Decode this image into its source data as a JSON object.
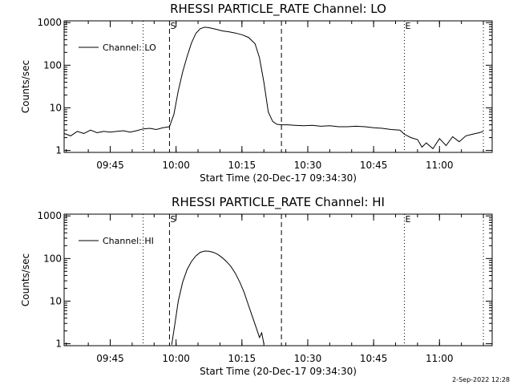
{
  "page": {
    "timestamp": "2-Sep-2022 12:28"
  },
  "chart_data": [
    {
      "type": "line",
      "title": "RHESSI PARTICLE_RATE Channel: LO",
      "xlabel": "Start Time (20-Dec-17 09:34:30)",
      "ylabel": "Counts/sec",
      "yscale": "log",
      "xlim": [
        "09:34:30",
        "11:12:00"
      ],
      "ylim": [
        0.9,
        1100
      ],
      "x_ticks": [
        "09:45",
        "10:00",
        "10:15",
        "10:30",
        "10:45",
        "11:00"
      ],
      "y_ticks": [
        "1",
        "10",
        "100",
        "1000"
      ],
      "legend_position": "top-left",
      "grid": false,
      "markers": [
        {
          "label": "S",
          "time": "09:58:30",
          "style": "dashed"
        },
        {
          "label": "E",
          "time": "10:52:00",
          "style": "dotted"
        }
      ],
      "vlines": [
        {
          "time": "09:52:30",
          "style": "dotted"
        },
        {
          "time": "09:58:30",
          "style": "dashed"
        },
        {
          "time": "10:24:00",
          "style": "dashed"
        },
        {
          "time": "10:52:00",
          "style": "dotted"
        },
        {
          "time": "11:10:00",
          "style": "dotted"
        }
      ],
      "series": [
        {
          "name": "Channel: LO",
          "x": [
            "09:34:30",
            "09:36:00",
            "09:37:30",
            "09:39:00",
            "09:40:30",
            "09:42:00",
            "09:43:30",
            "09:45:00",
            "09:46:30",
            "09:48:00",
            "09:49:30",
            "09:51:00",
            "09:52:30",
            "09:54:00",
            "09:55:30",
            "09:57:00",
            "09:58:30",
            "09:59:30",
            "10:00:30",
            "10:01:30",
            "10:02:30",
            "10:03:30",
            "10:04:30",
            "10:05:30",
            "10:06:30",
            "10:07:30",
            "10:09:00",
            "10:10:30",
            "10:12:00",
            "10:13:30",
            "10:15:00",
            "10:16:30",
            "10:18:00",
            "10:19:00",
            "10:20:00",
            "10:21:00",
            "10:22:00",
            "10:23:00",
            "10:24:00",
            "10:25:30",
            "10:27:00",
            "10:29:00",
            "10:31:00",
            "10:33:00",
            "10:35:00",
            "10:37:00",
            "10:39:00",
            "10:41:00",
            "10:43:00",
            "10:45:00",
            "10:47:00",
            "10:49:00",
            "10:51:00",
            "10:52:00",
            "10:53:30",
            "10:55:00",
            "10:56:00",
            "10:57:00",
            "10:58:30",
            "11:00:00",
            "11:01:30",
            "11:03:00",
            "11:04:30",
            "11:06:00",
            "11:07:30",
            "11:09:00",
            "11:10:00"
          ],
          "y": [
            2.5,
            2.2,
            2.8,
            2.5,
            3.0,
            2.6,
            2.8,
            2.7,
            2.8,
            2.9,
            2.7,
            2.9,
            3.2,
            3.3,
            3.1,
            3.4,
            3.6,
            7,
            25,
            70,
            160,
            330,
            560,
            720,
            780,
            760,
            700,
            640,
            610,
            570,
            520,
            450,
            320,
            150,
            40,
            8,
            4.8,
            4.1,
            4.0,
            4.0,
            3.9,
            3.8,
            3.9,
            3.7,
            3.8,
            3.6,
            3.6,
            3.7,
            3.6,
            3.4,
            3.3,
            3.1,
            3.0,
            2.4,
            2.0,
            1.8,
            1.2,
            1.5,
            1.1,
            1.9,
            1.3,
            2.1,
            1.6,
            2.2,
            2.4,
            2.6,
            2.8
          ]
        }
      ]
    },
    {
      "type": "line",
      "title": "RHESSI PARTICLE_RATE Channel: HI",
      "xlabel": "Start Time (20-Dec-17 09:34:30)",
      "ylabel": "Counts/sec",
      "yscale": "log",
      "xlim": [
        "09:34:30",
        "11:12:00"
      ],
      "ylim": [
        0.9,
        1100
      ],
      "x_ticks": [
        "09:45",
        "10:00",
        "10:15",
        "10:30",
        "10:45",
        "11:00"
      ],
      "y_ticks": [
        "1",
        "10",
        "100",
        "1000"
      ],
      "legend_position": "top-left",
      "grid": false,
      "markers": [
        {
          "label": "S",
          "time": "09:58:30",
          "style": "dashed"
        },
        {
          "label": "E",
          "time": "10:52:00",
          "style": "dotted"
        }
      ],
      "vlines": [
        {
          "time": "09:52:30",
          "style": "dotted"
        },
        {
          "time": "09:58:30",
          "style": "dashed"
        },
        {
          "time": "10:24:00",
          "style": "dashed"
        },
        {
          "time": "10:52:00",
          "style": "dotted"
        },
        {
          "time": "11:10:00",
          "style": "dotted"
        }
      ],
      "series": [
        {
          "name": "Channel: HI",
          "x": [
            "09:59:00",
            "09:59:45",
            "10:00:30",
            "10:01:30",
            "10:02:30",
            "10:03:30",
            "10:04:30",
            "10:05:30",
            "10:06:30",
            "10:07:30",
            "10:08:30",
            "10:09:30",
            "10:10:30",
            "10:11:30",
            "10:12:30",
            "10:13:30",
            "10:14:30",
            "10:15:30",
            "10:16:30",
            "10:17:30",
            "10:18:30",
            "10:19:00",
            "10:19:30",
            "10:20:00"
          ],
          "y": [
            0.95,
            3,
            10,
            28,
            55,
            85,
            115,
            140,
            150,
            148,
            140,
            125,
            105,
            85,
            65,
            45,
            28,
            16,
            8,
            4,
            2,
            1.4,
            1.8,
            1.0
          ]
        }
      ]
    }
  ]
}
